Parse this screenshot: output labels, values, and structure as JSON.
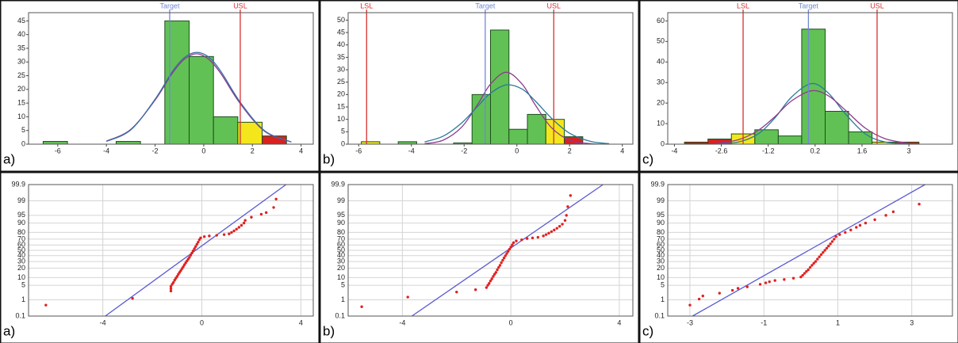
{
  "chart_data": [
    {
      "type": "histogram",
      "label": "a)",
      "bins": [
        -6.6,
        -5.6,
        -4.6,
        -3.6,
        -2.6,
        -1.6,
        -0.6,
        0.4,
        1.4,
        2.4,
        3.4
      ],
      "values": [
        1,
        0,
        0,
        1,
        0,
        45,
        32,
        10,
        8,
        3
      ],
      "colors": [
        "#62c155",
        "#62c155",
        "#62c155",
        "#62c155",
        "#62c155",
        "#62c155",
        "#62c155",
        "#62c155",
        "#f3e71c",
        "#d9211f"
      ],
      "xlim": [
        -7.2,
        4.5
      ],
      "xticks": [
        -6,
        -4,
        -2,
        0,
        2,
        4
      ],
      "ylim": [
        0,
        48
      ],
      "yticks": [
        0,
        5,
        10,
        15,
        20,
        25,
        30,
        35,
        40,
        45
      ],
      "reference_lines": [
        {
          "label": "Target",
          "value": -1.4,
          "color": "#6f88d8"
        },
        {
          "label": "USL",
          "value": 1.5,
          "color": "#d83030"
        }
      ],
      "lines": [
        {
          "color": "#8e3a8e",
          "x": [
            -4,
            -3,
            -2,
            -1.3,
            -0.8,
            -0.3,
            0.2,
            0.7,
            1.5,
            2.5,
            3.6
          ],
          "values": [
            1.1,
            5.4,
            16.1,
            25.8,
            31,
            33,
            31,
            25.8,
            14.8,
            4.7,
            0.8
          ]
        },
        {
          "color": "#3a6ea5",
          "x": [
            -4,
            -3,
            -2,
            -1.3,
            -0.8,
            -0.3,
            0.2,
            0.7,
            1.5,
            2.5,
            3.6
          ],
          "values": [
            1.0,
            5.2,
            16.4,
            26.4,
            31.6,
            33.5,
            31.8,
            26.6,
            15.3,
            4.9,
            0.8
          ]
        }
      ]
    },
    {
      "type": "histogram",
      "label": "b)",
      "bins": [
        -5.9,
        -5.2,
        -4.5,
        -3.8,
        -3.1,
        -2.4,
        -1.7,
        -1.0,
        -0.3,
        0.4,
        1.1,
        1.8,
        2.5
      ],
      "values": [
        1,
        0,
        1,
        0,
        0,
        0.5,
        20,
        46,
        6,
        12,
        10,
        3
      ],
      "colors": [
        "#f3e71c",
        "#62c155",
        "#62c155",
        "#62c155",
        "#62c155",
        "#62c155",
        "#62c155",
        "#62c155",
        "#62c155",
        "#62c155",
        "#f3e71c",
        "#d9211f"
      ],
      "xlim": [
        -6.4,
        4.4
      ],
      "xticks": [
        -6,
        -4,
        -2,
        0,
        2,
        4
      ],
      "ylim": [
        0,
        53
      ],
      "yticks": [
        0,
        5,
        10,
        15,
        20,
        25,
        30,
        35,
        40,
        45,
        50
      ],
      "reference_lines": [
        {
          "label": "LSL",
          "value": -5.7,
          "color": "#d83030"
        },
        {
          "label": "Target",
          "value": -1.2,
          "color": "#6f88d8"
        },
        {
          "label": "USL",
          "value": 1.4,
          "color": "#d83030"
        }
      ],
      "lines": [
        {
          "color": "#8e3a8e",
          "x": [
            -3.5,
            -2.8,
            -2.1,
            -1.5,
            -1.0,
            -0.4,
            0.2,
            0.7,
            1.3,
            2.0,
            2.8,
            3.5
          ],
          "values": [
            0.2,
            1.6,
            6.8,
            15.8,
            24.2,
            29,
            24.2,
            15.8,
            6.8,
            1.6,
            0.2,
            0.0
          ]
        },
        {
          "color": "#2a7a9a",
          "x": [
            -3.5,
            -2.8,
            -2.1,
            -1.5,
            -1.0,
            -0.4,
            0.2,
            0.7,
            1.3,
            2.0,
            2.8,
            3.5
          ],
          "values": [
            0.9,
            3.2,
            8.5,
            15.1,
            20.5,
            23.9,
            22.2,
            17.4,
            10.6,
            4.4,
            1.1,
            0.2
          ]
        }
      ]
    },
    {
      "type": "histogram",
      "label": "c)",
      "bins": [
        -3.7,
        -3.0,
        -2.3,
        -1.6,
        -0.9,
        -0.2,
        0.5,
        1.2,
        1.9,
        2.6,
        3.3
      ],
      "values": [
        1,
        2.5,
        5,
        7,
        4,
        56,
        16,
        6,
        1,
        1
      ],
      "colors": [
        "#c01818",
        "#d9211f",
        "#f3e71c",
        "#62c155",
        "#62c155",
        "#62c155",
        "#62c155",
        "#62c155",
        "#f3e71c",
        "#d9211f"
      ],
      "xlim": [
        -4.2,
        4.3
      ],
      "xticks": [
        -4,
        -2.6,
        -1.2,
        0.2,
        1.6,
        3
      ],
      "ylim": [
        0,
        64
      ],
      "yticks": [
        0,
        10,
        20,
        30,
        40,
        50,
        60
      ],
      "reference_lines": [
        {
          "label": "LSL",
          "value": -1.95,
          "color": "#d83030"
        },
        {
          "label": "Target",
          "value": 0,
          "color": "#6f88d8"
        },
        {
          "label": "USL",
          "value": 2.05,
          "color": "#d83030"
        }
      ],
      "lines": [
        {
          "color": "#2a7a9a",
          "x": [
            -2.8,
            -2.1,
            -1.5,
            -1.0,
            -0.5,
            0.1,
            0.6,
            1.1,
            1.7,
            2.3,
            3.0
          ],
          "values": [
            0.1,
            1.0,
            5.0,
            12.8,
            23.0,
            29.5,
            24.8,
            14.8,
            5.0,
            1.0,
            0.1
          ]
        },
        {
          "color": "#8e3a8e",
          "x": [
            -2.8,
            -2.1,
            -1.5,
            -1.0,
            -0.5,
            0.1,
            0.6,
            1.1,
            1.7,
            2.3,
            3.0
          ],
          "values": [
            0.3,
            2.1,
            6.7,
            13.4,
            21.1,
            26,
            23.5,
            16.6,
            7.8,
            2.6,
            0.4
          ]
        }
      ]
    },
    {
      "type": "probability",
      "label": "a)",
      "color": "#e02020",
      "grid": true,
      "y_scale": "probability",
      "x": [
        -6.3,
        -2.8,
        -1.25,
        -1.25,
        -1.25,
        -1.2,
        -1.15,
        -1.1,
        -1.05,
        -1.0,
        -0.95,
        -0.9,
        -0.85,
        -0.8,
        -0.75,
        -0.7,
        -0.65,
        -0.6,
        -0.55,
        -0.5,
        -0.45,
        -0.4,
        -0.35,
        -0.3,
        -0.25,
        -0.2,
        -0.15,
        -0.1,
        -0.05,
        0.1,
        0.3,
        0.6,
        0.9,
        1.1,
        1.2,
        1.3,
        1.4,
        1.5,
        1.6,
        1.7,
        1.75,
        2.0,
        2.4,
        2.6,
        2.9,
        3.0
      ],
      "values": [
        0.5,
        1.2,
        2.8,
        3.6,
        4.5,
        5.5,
        6.5,
        8,
        9.5,
        11,
        13,
        15,
        17,
        19.5,
        22,
        25,
        28,
        31,
        34,
        37,
        41,
        45,
        49,
        53,
        57,
        61,
        65,
        69,
        72,
        74,
        75,
        76,
        77,
        78,
        80,
        82,
        84,
        86,
        88,
        90,
        92,
        94,
        95.5,
        96.2,
        97.8,
        99.2
      ],
      "fit_line": {
        "color": "#5a5ad2",
        "x": [
          -3.9,
          3.4
        ],
        "values": [
          0.1,
          99.9
        ]
      },
      "xlim": [
        -7,
        4.5
      ],
      "xticks": [
        -4,
        0,
        4
      ],
      "ylim": [
        0.1,
        99.9
      ],
      "yticks": [
        0.1,
        1,
        5,
        10,
        20,
        30,
        40,
        50,
        60,
        70,
        80,
        90,
        95,
        99,
        99.9
      ]
    },
    {
      "type": "probability",
      "label": "b)",
      "color": "#e02020",
      "grid": true,
      "y_scale": "probability",
      "x": [
        -5.5,
        -3.8,
        -2.0,
        -1.3,
        -0.9,
        -0.85,
        -0.8,
        -0.75,
        -0.7,
        -0.65,
        -0.6,
        -0.55,
        -0.5,
        -0.45,
        -0.4,
        -0.35,
        -0.3,
        -0.25,
        -0.2,
        -0.15,
        -0.1,
        -0.05,
        0,
        0.05,
        0.1,
        0.2,
        0.4,
        0.6,
        0.8,
        1.0,
        1.2,
        1.3,
        1.4,
        1.5,
        1.6,
        1.7,
        1.8,
        1.9,
        2.0,
        2.05,
        2.1,
        2.2
      ],
      "values": [
        0.4,
        1.4,
        2.5,
        3.2,
        4,
        5,
        6,
        7.5,
        9,
        11,
        13,
        15,
        18,
        21,
        24,
        28,
        32,
        36,
        40,
        44,
        48,
        52,
        56,
        60,
        64,
        67,
        69,
        71,
        72,
        73,
        75,
        77,
        79,
        81,
        83,
        85,
        87,
        89,
        92,
        95,
        98,
        99.5
      ],
      "fit_line": {
        "color": "#5a5ad2",
        "x": [
          -3.65,
          3.4
        ],
        "values": [
          0.1,
          99.9
        ]
      },
      "xlim": [
        -6,
        4.5
      ],
      "xticks": [
        -4,
        0,
        4
      ],
      "ylim": [
        0.1,
        99.9
      ],
      "yticks": [
        0.1,
        1,
        5,
        10,
        20,
        30,
        40,
        50,
        60,
        70,
        80,
        90,
        95,
        99,
        99.9
      ]
    },
    {
      "type": "probability",
      "label": "c)",
      "color": "#e02020",
      "grid": true,
      "y_scale": "probability",
      "x": [
        -3.0,
        -2.75,
        -2.65,
        -2.2,
        -1.85,
        -1.7,
        -1.45,
        -1.1,
        -0.95,
        -0.85,
        -0.7,
        -0.45,
        -0.2,
        0.0,
        0.05,
        0.1,
        0.15,
        0.2,
        0.25,
        0.3,
        0.35,
        0.4,
        0.45,
        0.5,
        0.55,
        0.6,
        0.65,
        0.7,
        0.75,
        0.8,
        0.85,
        0.9,
        0.95,
        1.05,
        1.2,
        1.35,
        1.5,
        1.6,
        1.75,
        2.0,
        2.3,
        2.5,
        3.2
      ],
      "values": [
        0.5,
        1.1,
        1.6,
        2.2,
        3,
        3.7,
        4.3,
        5.5,
        6.3,
        7,
        7.8,
        8.5,
        9.5,
        10.5,
        12,
        14,
        16,
        18,
        21,
        24,
        27,
        30,
        34,
        38,
        42,
        46,
        50,
        54,
        58,
        62,
        66,
        70,
        74,
        77,
        80,
        83,
        86,
        88,
        90,
        92.5,
        95,
        96.5,
        98.5
      ],
      "fit_line": {
        "color": "#5a5ad2",
        "x": [
          -2.93,
          3.36
        ],
        "values": [
          0.1,
          99.9
        ]
      },
      "xlim": [
        -3.6,
        4.1
      ],
      "xticks": [
        -3,
        -1,
        1,
        3
      ],
      "ylim": [
        0.1,
        99.9
      ],
      "yticks": [
        0.1,
        1,
        5,
        10,
        20,
        30,
        40,
        50,
        60,
        70,
        80,
        90,
        95,
        99,
        99.9
      ]
    }
  ]
}
